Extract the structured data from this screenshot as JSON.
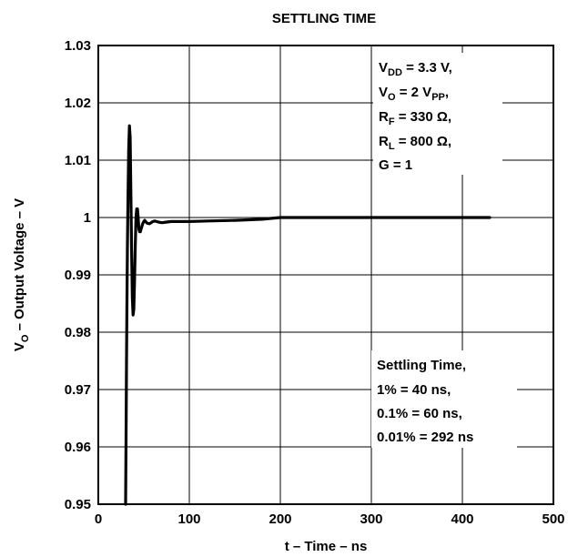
{
  "chart_data": {
    "type": "line",
    "title": "SETTLING TIME",
    "xlabel": "t – Time – ns",
    "ylabel_parts": [
      "V",
      "O",
      " – Output Voltage – V"
    ],
    "xlim": [
      0,
      500
    ],
    "ylim": [
      0.95,
      1.03
    ],
    "x_ticks": [
      0,
      100,
      200,
      300,
      400,
      500
    ],
    "x_tick_labels": [
      "0",
      "100",
      "200",
      "300",
      "400",
      "500"
    ],
    "y_ticks": [
      0.95,
      0.96,
      0.97,
      0.98,
      0.99,
      1.0,
      1.01,
      1.02,
      1.03
    ],
    "y_tick_labels": [
      "0.95",
      "0.96",
      "0.97",
      "0.98",
      "0.99",
      "1",
      "1.01",
      "1.02",
      "1.03"
    ],
    "grid": true,
    "series": [
      {
        "x": [
          30,
          30.5,
          31,
          31.5,
          32,
          32.6,
          33.4,
          34.2,
          35,
          35.8,
          36.6,
          37.4,
          38.2,
          39,
          39.8,
          40.6,
          41.4,
          42.2,
          43,
          43.8,
          44.6,
          45.4,
          46.2,
          47,
          48,
          49,
          50,
          51,
          52,
          53,
          54,
          56,
          58,
          60,
          62,
          64,
          66,
          70,
          75,
          80,
          90,
          100,
          120,
          150,
          180,
          200,
          250,
          300,
          350,
          400,
          430
        ],
        "y": [
          0.949,
          0.962,
          0.975,
          0.986,
          0.995,
          1.003,
          1.012,
          1.016,
          1.014,
          1.004,
          0.994,
          0.986,
          0.983,
          0.984,
          0.989,
          0.995,
          1.0,
          1.0015,
          1.0015,
          1.0,
          0.998,
          0.9975,
          0.9975,
          0.998,
          0.9985,
          0.999,
          0.9993,
          0.9995,
          0.9993,
          0.9991,
          0.999,
          0.9989,
          0.9991,
          0.9993,
          0.9994,
          0.9993,
          0.9992,
          0.9991,
          0.9992,
          0.9993,
          0.9993,
          0.9993,
          0.9994,
          0.9995,
          0.9997,
          1.0,
          1.0,
          1.0,
          1.0,
          1.0,
          1.0
        ]
      }
    ],
    "annotations": {
      "conditions": [
        {
          "main": "V",
          "sub": "DD",
          "rest": " = 3.3 V,"
        },
        {
          "main": "V",
          "sub": "O",
          "rest": " = 2 V",
          "sub2": "PP",
          "rest2": ","
        },
        {
          "main": "R",
          "sub": "F",
          "rest": " = 330 Ω,"
        },
        {
          "main": "R",
          "sub": "L",
          "rest": " = 800 Ω,"
        },
        {
          "main": "G = 1"
        }
      ],
      "settling": [
        "Settling Time,",
        "1% = 40 ns,",
        "0.1% = 60 ns,",
        "0.01% = 292 ns"
      ]
    }
  }
}
